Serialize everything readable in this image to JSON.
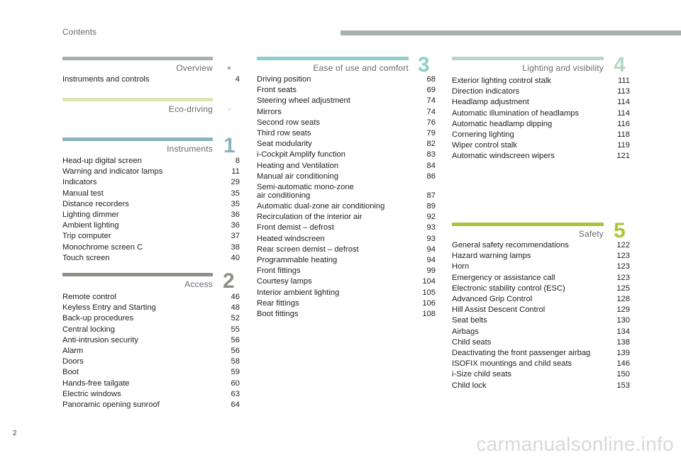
{
  "header": {
    "label": "Contents",
    "bar_color": "#a7b1b1"
  },
  "page_number": "2",
  "watermark": "carmanualsonline.info",
  "sections": {
    "overview": {
      "title": "Overview",
      "number": "",
      "bar_color": "#a5aeae",
      "entries": [
        {
          "label": "Instruments and controls",
          "page": "4"
        }
      ]
    },
    "eco": {
      "title": "Eco-driving",
      "number": "",
      "bar_color": "#dfe3b5",
      "entries": []
    },
    "instruments": {
      "title": "Instruments",
      "number": "1",
      "bar_color": "#8ab3be",
      "entries": [
        {
          "label": "Head-up digital screen",
          "page": "8"
        },
        {
          "label": "Warning and indicator lamps",
          "page": "11"
        },
        {
          "label": "Indicators",
          "page": "29"
        },
        {
          "label": "Manual test",
          "page": "35"
        },
        {
          "label": "Distance recorders",
          "page": "35"
        },
        {
          "label": "Lighting dimmer",
          "page": "36"
        },
        {
          "label": "Ambient lighting",
          "page": "36"
        },
        {
          "label": "Trip computer",
          "page": "37"
        },
        {
          "label": "Monochrome screen C",
          "page": "38"
        },
        {
          "label": "Touch screen",
          "page": "40"
        }
      ]
    },
    "access": {
      "title": "Access",
      "number": "2",
      "bar_color": "#8d8f8a",
      "entries": [
        {
          "label": "Remote control",
          "page": "46"
        },
        {
          "label": "Keyless Entry and Starting",
          "page": "48"
        },
        {
          "label": "Back-up procedures",
          "page": "52"
        },
        {
          "label": "Central locking",
          "page": "55"
        },
        {
          "label": "Anti-intrusion security",
          "page": "56"
        },
        {
          "label": "Alarm",
          "page": "56"
        },
        {
          "label": "Doors",
          "page": "58"
        },
        {
          "label": "Boot",
          "page": "59"
        },
        {
          "label": "Hands-free tailgate",
          "page": "60"
        },
        {
          "label": "Electric windows",
          "page": "63"
        },
        {
          "label": "Panoramic opening sunroof",
          "page": "64"
        }
      ]
    },
    "ease": {
      "title": "Ease of use and comfort",
      "number": "3",
      "bar_color": "#8ccfc9",
      "entries": [
        {
          "label": "Driving position",
          "page": "68"
        },
        {
          "label": "Front seats",
          "page": "69"
        },
        {
          "label": "Steering wheel adjustment",
          "page": "74"
        },
        {
          "label": "Mirrors",
          "page": "74"
        },
        {
          "label": "Second row seats",
          "page": "76"
        },
        {
          "label": "Third row seats",
          "page": "79"
        },
        {
          "label": "Seat modularity",
          "page": "82"
        },
        {
          "label": "i-Cockpit Amplify function",
          "page": "83"
        },
        {
          "label": "Heating and Ventilation",
          "page": "84"
        },
        {
          "label": "Manual air conditioning",
          "page": "86"
        },
        {
          "label": "Semi-automatic mono-zone\nair conditioning",
          "page": "87"
        },
        {
          "label": "Automatic dual-zone air conditioning",
          "page": "89"
        },
        {
          "label": "Recirculation of the interior air",
          "page": "92"
        },
        {
          "label": "Front demist – defrost",
          "page": "93"
        },
        {
          "label": "Heated windscreen",
          "page": "93"
        },
        {
          "label": "Rear screen demist – defrost",
          "page": "94"
        },
        {
          "label": "Programmable heating",
          "page": "94"
        },
        {
          "label": "Front fittings",
          "page": "99"
        },
        {
          "label": "Courtesy lamps",
          "page": "104"
        },
        {
          "label": "Interior ambient lighting",
          "page": "105"
        },
        {
          "label": "Rear fittings",
          "page": "106"
        },
        {
          "label": "Boot fittings",
          "page": "108"
        }
      ]
    },
    "lighting": {
      "title": "Lighting and visibility",
      "number": "4",
      "bar_color": "#b7d8c6",
      "entries": [
        {
          "label": "Exterior lighting control stalk",
          "page": "111"
        },
        {
          "label": "Direction indicators",
          "page": "113"
        },
        {
          "label": "Headlamp adjustment",
          "page": "114"
        },
        {
          "label": "Automatic illumination of headlamps",
          "page": "114"
        },
        {
          "label": "Automatic headlamp dipping",
          "page": "116"
        },
        {
          "label": "Cornering lighting",
          "page": "118"
        },
        {
          "label": "Wiper control stalk",
          "page": "119"
        },
        {
          "label": "Automatic windscreen wipers",
          "page": "121"
        }
      ]
    },
    "safety": {
      "title": "Safety",
      "number": "5",
      "bar_color": "#a9c33b",
      "entries": [
        {
          "label": "General safety recommendations",
          "page": "122"
        },
        {
          "label": "Hazard warning lamps",
          "page": "123"
        },
        {
          "label": "Horn",
          "page": "123"
        },
        {
          "label": "Emergency or assistance call",
          "page": "123"
        },
        {
          "label": "Electronic stability control (ESC)",
          "page": "125"
        },
        {
          "label": "Advanced Grip Control",
          "page": "128"
        },
        {
          "label": "Hill Assist Descent Control",
          "page": "129"
        },
        {
          "label": "Seat belts",
          "page": "130"
        },
        {
          "label": "Airbags",
          "page": "134"
        },
        {
          "label": "Child seats",
          "page": "138"
        },
        {
          "label": "Deactivating the front passenger airbag",
          "page": "139"
        },
        {
          "label": "ISOFIX mountings and child seats",
          "page": "146"
        },
        {
          "label": "i-Size child seats",
          "page": "150"
        },
        {
          "label": "Child lock",
          "page": "153"
        }
      ]
    }
  }
}
